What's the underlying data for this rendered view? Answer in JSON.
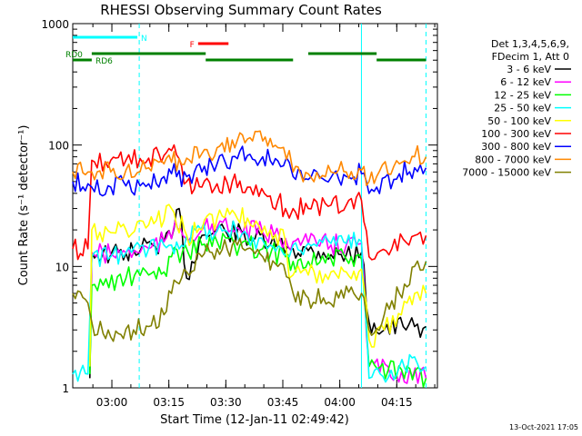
{
  "chart_data": {
    "type": "line",
    "title": "RHESSI Observing Summary Count Rates",
    "xlabel": "Start Time (12-Jan-11 02:49:42)",
    "ylabel": "Count Rate (s⁻¹ detector⁻¹)",
    "yscale": "log",
    "ylim": [
      1,
      1000
    ],
    "xlim_minutes": [
      0,
      96
    ],
    "x_ticks": [
      {
        "label": "03:00",
        "minute": 10.3
      },
      {
        "label": "03:15",
        "minute": 25.3
      },
      {
        "label": "03:30",
        "minute": 40.3
      },
      {
        "label": "03:45",
        "minute": 55.3
      },
      {
        "label": "04:00",
        "minute": 70.3
      },
      {
        "label": "04:15",
        "minute": 85.3
      }
    ],
    "y_ticks": [
      {
        "label": "1",
        "value": 1
      },
      {
        "label": "10",
        "value": 10
      },
      {
        "label": "100",
        "value": 100
      },
      {
        "label": "1000",
        "value": 1000
      }
    ],
    "legend_header": [
      "Det 1,3,4,5,6,9,",
      "FDecim 1, Att 0"
    ],
    "legend_position": "right",
    "series": [
      {
        "name": "3 - 6 keV",
        "color": "#000000",
        "points": [
          [
            4.5,
            1.2
          ],
          [
            5,
            13
          ],
          [
            10,
            12.5
          ],
          [
            14,
            12.8
          ],
          [
            16,
            13.5
          ],
          [
            18,
            14
          ],
          [
            21,
            15
          ],
          [
            24,
            16
          ],
          [
            26,
            17
          ],
          [
            28,
            30
          ],
          [
            30,
            8
          ],
          [
            34,
            18
          ],
          [
            40,
            20
          ],
          [
            48,
            17
          ],
          [
            52,
            15
          ],
          [
            58,
            14
          ],
          [
            62,
            13.5
          ],
          [
            66,
            13
          ],
          [
            68,
            12.5
          ],
          [
            72,
            12.5
          ],
          [
            76,
            13
          ],
          [
            78,
            3.5
          ],
          [
            82,
            3
          ],
          [
            87,
            3.2
          ],
          [
            90,
            3.2
          ],
          [
            93,
            3.2
          ]
        ]
      },
      {
        "name": "6 - 12 keV",
        "color": "#ff00ff",
        "points": [
          [
            4.5,
            1.5
          ],
          [
            5,
            13
          ],
          [
            10,
            12.5
          ],
          [
            14,
            13
          ],
          [
            20,
            14
          ],
          [
            24,
            16
          ],
          [
            26,
            17
          ],
          [
            27,
            24
          ],
          [
            29,
            18
          ],
          [
            34,
            20
          ],
          [
            38,
            21
          ],
          [
            44,
            20
          ],
          [
            50,
            19
          ],
          [
            56,
            17
          ],
          [
            58,
            16
          ],
          [
            62,
            15.5
          ],
          [
            68,
            15
          ],
          [
            72,
            15
          ],
          [
            76,
            15.5
          ],
          [
            78,
            1.5
          ],
          [
            93,
            1.2
          ]
        ]
      },
      {
        "name": "12 - 25 keV",
        "color": "#00ff00",
        "points": [
          [
            4.5,
            1.3
          ],
          [
            5,
            7
          ],
          [
            8,
            7
          ],
          [
            14,
            8
          ],
          [
            20,
            8.5
          ],
          [
            24,
            9
          ],
          [
            26,
            12
          ],
          [
            34,
            15
          ],
          [
            38,
            16
          ],
          [
            44,
            15
          ],
          [
            50,
            14
          ],
          [
            56,
            12
          ],
          [
            58,
            11
          ],
          [
            62,
            11
          ],
          [
            68,
            11.5
          ],
          [
            72,
            11.5
          ],
          [
            76,
            11.5
          ],
          [
            78,
            1.5
          ],
          [
            93,
            1.2
          ]
        ]
      },
      {
        "name": "25 - 50 keV",
        "color": "#00ffff",
        "points": [
          [
            0,
            1.3
          ],
          [
            4,
            1.3
          ],
          [
            5,
            12
          ],
          [
            10,
            12
          ],
          [
            14,
            13
          ],
          [
            20,
            14
          ],
          [
            24,
            15
          ],
          [
            26,
            15
          ],
          [
            30,
            18
          ],
          [
            36,
            20
          ],
          [
            40,
            20
          ],
          [
            46,
            18
          ],
          [
            52,
            15
          ],
          [
            57,
            12
          ],
          [
            58,
            15
          ],
          [
            62,
            15.5
          ],
          [
            68,
            15.5
          ],
          [
            72,
            15.5
          ],
          [
            76,
            16
          ],
          [
            78,
            1.2
          ],
          [
            86,
            1.5
          ],
          [
            90,
            1.8
          ],
          [
            93,
            1.5
          ]
        ]
      },
      {
        "name": "50 - 100 keV",
        "color": "#ffff00",
        "points": [
          [
            4.5,
            1.5
          ],
          [
            5,
            20
          ],
          [
            10,
            19
          ],
          [
            14,
            20
          ],
          [
            20,
            22
          ],
          [
            24,
            24
          ],
          [
            26,
            30
          ],
          [
            30,
            18
          ],
          [
            34,
            20
          ],
          [
            38,
            25
          ],
          [
            42,
            29
          ],
          [
            46,
            25
          ],
          [
            52,
            20
          ],
          [
            56,
            16
          ],
          [
            57,
            8
          ],
          [
            58,
            8.5
          ],
          [
            62,
            8.5
          ],
          [
            68,
            9
          ],
          [
            72,
            9
          ],
          [
            76,
            9.5
          ],
          [
            78,
            2.5
          ],
          [
            82,
            3
          ],
          [
            88,
            5
          ],
          [
            90,
            6
          ],
          [
            93,
            6
          ]
        ]
      },
      {
        "name": "100 - 300 keV",
        "color": "#ff0000",
        "points": [
          [
            0,
            14
          ],
          [
            4,
            14
          ],
          [
            5,
            75
          ],
          [
            10,
            75
          ],
          [
            14,
            75
          ],
          [
            20,
            78
          ],
          [
            24,
            82
          ],
          [
            26,
            90
          ],
          [
            30,
            50
          ],
          [
            34,
            45
          ],
          [
            38,
            48
          ],
          [
            42,
            50
          ],
          [
            46,
            45
          ],
          [
            52,
            38
          ],
          [
            56,
            30
          ],
          [
            57,
            25
          ],
          [
            58,
            30
          ],
          [
            62,
            30
          ],
          [
            68,
            32
          ],
          [
            72,
            32
          ],
          [
            76,
            35
          ],
          [
            78,
            12
          ],
          [
            84,
            14
          ],
          [
            90,
            18
          ],
          [
            93,
            18
          ]
        ]
      },
      {
        "name": "300 - 800 keV",
        "color": "#0000ff",
        "points": [
          [
            0,
            50
          ],
          [
            4,
            48
          ],
          [
            5,
            45
          ],
          [
            10,
            45
          ],
          [
            14,
            46
          ],
          [
            20,
            48
          ],
          [
            24,
            55
          ],
          [
            26,
            58
          ],
          [
            30,
            55
          ],
          [
            34,
            60
          ],
          [
            38,
            70
          ],
          [
            42,
            80
          ],
          [
            46,
            82
          ],
          [
            50,
            80
          ],
          [
            54,
            74
          ],
          [
            57,
            72
          ],
          [
            58,
            55
          ],
          [
            62,
            52
          ],
          [
            68,
            54
          ],
          [
            72,
            55
          ],
          [
            76,
            58
          ],
          [
            78,
            40
          ],
          [
            80,
            45
          ],
          [
            86,
            58
          ],
          [
            90,
            65
          ],
          [
            93,
            65
          ]
        ]
      },
      {
        "name": "800 - 7000 keV",
        "color": "#ff8800",
        "points": [
          [
            0,
            60
          ],
          [
            4,
            60
          ],
          [
            5,
            60
          ],
          [
            10,
            60
          ],
          [
            14,
            62
          ],
          [
            20,
            65
          ],
          [
            24,
            70
          ],
          [
            26,
            72
          ],
          [
            30,
            78
          ],
          [
            34,
            85
          ],
          [
            38,
            95
          ],
          [
            42,
            110
          ],
          [
            46,
            112
          ],
          [
            50,
            108
          ],
          [
            54,
            95
          ],
          [
            57,
            90
          ],
          [
            58,
            60
          ],
          [
            62,
            58
          ],
          [
            68,
            60
          ],
          [
            72,
            60
          ],
          [
            76,
            62
          ],
          [
            78,
            50
          ],
          [
            80,
            55
          ],
          [
            86,
            70
          ],
          [
            90,
            80
          ],
          [
            93,
            80
          ]
        ]
      },
      {
        "name": "7000 - 15000 keV",
        "color": "#808000",
        "points": [
          [
            0,
            6
          ],
          [
            4,
            5
          ],
          [
            5,
            3.5
          ],
          [
            8,
            2.8
          ],
          [
            12,
            2.8
          ],
          [
            16,
            3
          ],
          [
            20,
            3.2
          ],
          [
            24,
            4
          ],
          [
            26,
            6
          ],
          [
            30,
            9
          ],
          [
            34,
            12
          ],
          [
            38,
            14
          ],
          [
            42,
            15
          ],
          [
            46,
            14
          ],
          [
            50,
            12
          ],
          [
            54,
            10
          ],
          [
            57,
            8
          ],
          [
            58,
            6
          ],
          [
            62,
            5.5
          ],
          [
            66,
            5.5
          ],
          [
            70,
            5.5
          ],
          [
            74,
            6
          ],
          [
            76,
            6
          ],
          [
            78,
            3
          ],
          [
            82,
            4
          ],
          [
            86,
            6
          ],
          [
            90,
            10
          ],
          [
            93,
            11
          ]
        ]
      }
    ],
    "annotations": [
      {
        "label": "N",
        "color": "#00ffff",
        "segments": [
          [
            0,
            17
          ]
        ],
        "level": 1
      },
      {
        "label": "F",
        "color": "#ff0000",
        "segments": [
          [
            33,
            41
          ]
        ],
        "level": 2
      },
      {
        "label": "RD0",
        "color": "#008000",
        "segments": [
          [
            5,
            35
          ],
          [
            62,
            80
          ]
        ],
        "level": 3
      },
      {
        "label": "RD6",
        "color": "#008000",
        "segments": [
          [
            0,
            5
          ],
          [
            35,
            58
          ],
          [
            80,
            93
          ]
        ],
        "level": 4
      }
    ],
    "vertical_markers": [
      {
        "minute": 17.5,
        "color": "#00ffff",
        "style": "dashed"
      },
      {
        "minute": 76.0,
        "color": "#00ffff",
        "style": "solid"
      },
      {
        "minute": 93.0,
        "color": "#00ffff",
        "style": "dashed"
      }
    ],
    "timestamp": "13-Oct-2021 17:05"
  }
}
